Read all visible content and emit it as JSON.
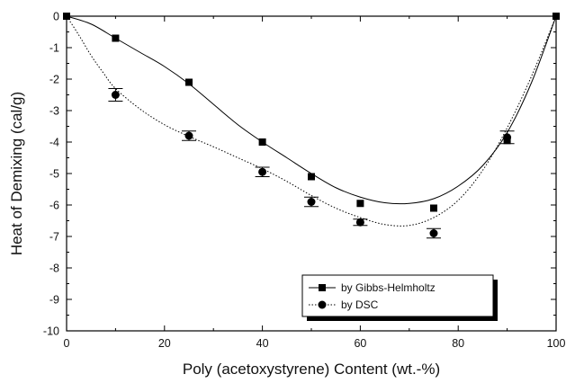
{
  "chart_data": {
    "type": "scatter",
    "xlabel": "Poly (acetoxystyrene) Content (wt.-%)",
    "ylabel": "Heat of Demixing (cal/g)",
    "xlim": [
      0,
      100
    ],
    "ylim": [
      -10,
      0
    ],
    "x_ticks": [
      "0",
      "20",
      "40",
      "60",
      "80",
      "100"
    ],
    "y_ticks": [
      "0",
      "-1",
      "-2",
      "-3",
      "-4",
      "-5",
      "-6",
      "-7",
      "-8",
      "-9",
      "-10"
    ],
    "grid": false,
    "legend_position": "bottom-right",
    "series": [
      {
        "name": "by Gibbs-Helmholtz",
        "marker": "square",
        "line": "solid",
        "color": "#000000",
        "points": [
          {
            "x": 0,
            "y": 0
          },
          {
            "x": 10,
            "y": -0.7
          },
          {
            "x": 25,
            "y": -2.1
          },
          {
            "x": 40,
            "y": -4.0
          },
          {
            "x": 50,
            "y": -5.1
          },
          {
            "x": 60,
            "y": -5.95
          },
          {
            "x": 75,
            "y": -6.1
          },
          {
            "x": 90,
            "y": -3.95
          },
          {
            "x": 100,
            "y": 0
          }
        ],
        "fit": [
          {
            "x": 0,
            "y": 0
          },
          {
            "x": 5,
            "y": -0.25
          },
          {
            "x": 10,
            "y": -0.7
          },
          {
            "x": 15,
            "y": -1.15
          },
          {
            "x": 20,
            "y": -1.6
          },
          {
            "x": 25,
            "y": -2.15
          },
          {
            "x": 30,
            "y": -2.8
          },
          {
            "x": 35,
            "y": -3.45
          },
          {
            "x": 40,
            "y": -4.0
          },
          {
            "x": 45,
            "y": -4.5
          },
          {
            "x": 50,
            "y": -5.0
          },
          {
            "x": 55,
            "y": -5.45
          },
          {
            "x": 60,
            "y": -5.75
          },
          {
            "x": 65,
            "y": -5.93
          },
          {
            "x": 70,
            "y": -5.95
          },
          {
            "x": 75,
            "y": -5.8
          },
          {
            "x": 80,
            "y": -5.4
          },
          {
            "x": 85,
            "y": -4.75
          },
          {
            "x": 90,
            "y": -3.7
          },
          {
            "x": 95,
            "y": -2.1
          },
          {
            "x": 100,
            "y": 0
          }
        ]
      },
      {
        "name": "by DSC",
        "marker": "circle",
        "line": "dotted",
        "color": "#000000",
        "points": [
          {
            "x": 10,
            "y": -2.5,
            "err": 0.2
          },
          {
            "x": 25,
            "y": -3.8,
            "err": 0.15
          },
          {
            "x": 40,
            "y": -4.95,
            "err": 0.15
          },
          {
            "x": 50,
            "y": -5.9,
            "err": 0.15
          },
          {
            "x": 60,
            "y": -6.55,
            "err": 0.1
          },
          {
            "x": 75,
            "y": -6.9,
            "err": 0.15
          },
          {
            "x": 90,
            "y": -3.85,
            "err": 0.2
          }
        ],
        "fit": [
          {
            "x": 0,
            "y": 0
          },
          {
            "x": 2.5,
            "y": -0.6
          },
          {
            "x": 5,
            "y": -1.25
          },
          {
            "x": 7.5,
            "y": -1.8
          },
          {
            "x": 10,
            "y": -2.3
          },
          {
            "x": 15,
            "y": -2.95
          },
          {
            "x": 20,
            "y": -3.45
          },
          {
            "x": 25,
            "y": -3.82
          },
          {
            "x": 30,
            "y": -4.15
          },
          {
            "x": 35,
            "y": -4.5
          },
          {
            "x": 40,
            "y": -4.85
          },
          {
            "x": 45,
            "y": -5.25
          },
          {
            "x": 50,
            "y": -5.7
          },
          {
            "x": 55,
            "y": -6.1
          },
          {
            "x": 60,
            "y": -6.4
          },
          {
            "x": 65,
            "y": -6.62
          },
          {
            "x": 70,
            "y": -6.65
          },
          {
            "x": 75,
            "y": -6.4
          },
          {
            "x": 80,
            "y": -5.85
          },
          {
            "x": 85,
            "y": -4.9
          },
          {
            "x": 90,
            "y": -3.55
          },
          {
            "x": 95,
            "y": -1.9
          },
          {
            "x": 100,
            "y": 0
          }
        ]
      }
    ]
  }
}
